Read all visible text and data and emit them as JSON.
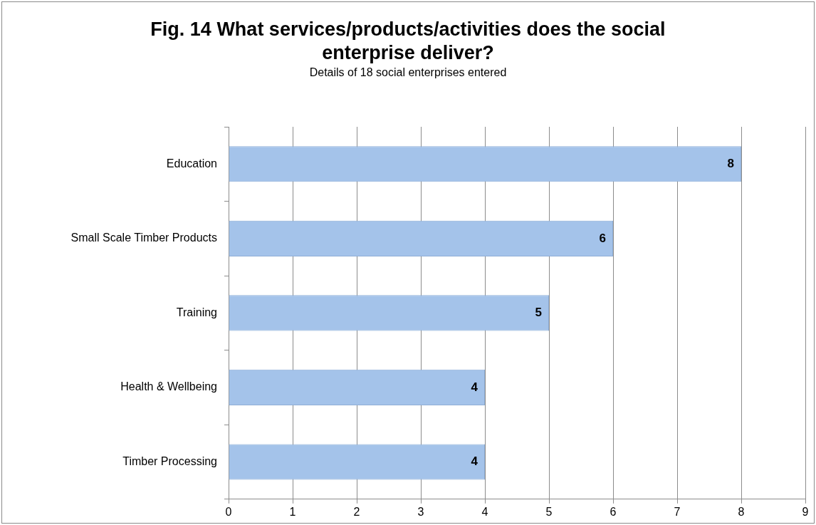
{
  "chart_data": {
    "type": "bar",
    "orientation": "horizontal",
    "title": "Fig. 14 What services/products/activities does the social enterprise deliver?",
    "subtitle": "Details of 18 social enterprises entered",
    "categories": [
      "Education",
      "Small Scale Timber Products",
      "Training",
      "Health & Wellbeing",
      "Timber Processing"
    ],
    "values": [
      8,
      6,
      5,
      4,
      4
    ],
    "color": "#a4c3ea",
    "xlim": [
      0,
      9
    ],
    "xticks": [
      0,
      1,
      2,
      3,
      4,
      5,
      6,
      7,
      8,
      9
    ],
    "grid": "x",
    "legend": false,
    "data_labels": true
  }
}
